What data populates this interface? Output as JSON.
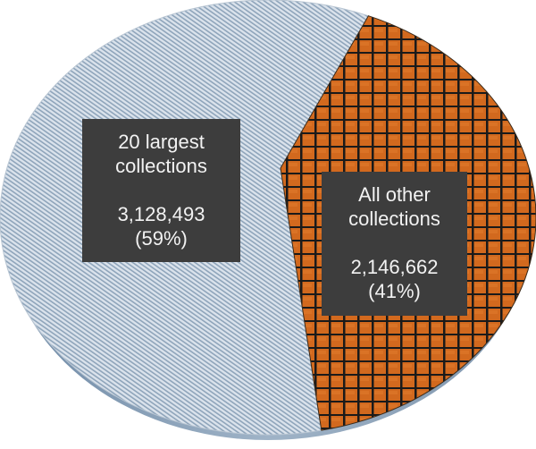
{
  "chart_data": {
    "type": "pie",
    "title": "",
    "slices": [
      {
        "label_lines": [
          "20 largest",
          "collections"
        ],
        "value": 3128493,
        "value_text": "3,128,493",
        "percent_text": "(59%)",
        "color": "#c7d3df"
      },
      {
        "label_lines": [
          "All other",
          "collections"
        ],
        "value": 2146662,
        "value_text": "2,146,662",
        "percent_text": "(41%)",
        "color": "#d2691e"
      }
    ],
    "legend": "none",
    "style": "3d-textured"
  }
}
